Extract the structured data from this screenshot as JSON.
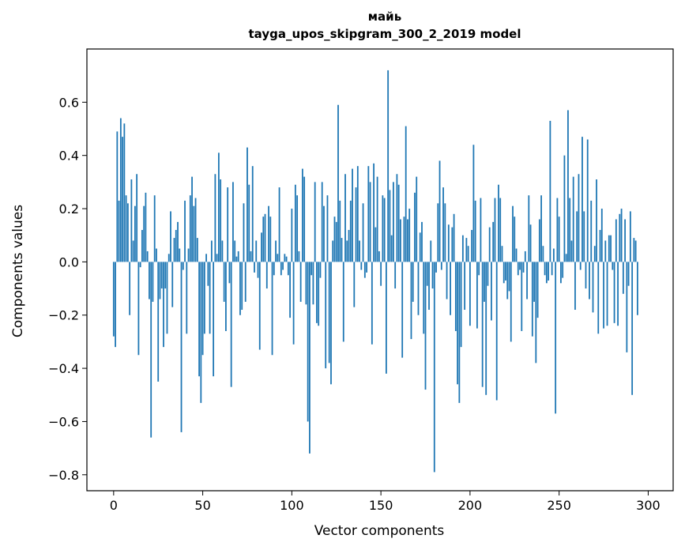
{
  "chart_data": {
    "type": "bar",
    "title": "майь",
    "subtitle": "tayga_upos_skipgram_300_2_2019 model",
    "xlabel": "Vector components",
    "ylabel": "Components values",
    "xlim": [
      -15,
      314
    ],
    "ylim": [
      -0.86,
      0.8
    ],
    "xticks": [
      0,
      50,
      100,
      150,
      200,
      250,
      300
    ],
    "yticks": [
      -0.8,
      -0.6,
      -0.4,
      -0.2,
      0.0,
      0.2,
      0.4,
      0.6
    ],
    "ytick_labels": [
      "−0.8",
      "−0.6",
      "−0.4",
      "−0.2",
      "0.0",
      "0.2",
      "0.4",
      "0.6"
    ],
    "grid": false,
    "bar_color": "#1f77b4",
    "values": [
      -0.28,
      -0.32,
      0.49,
      0.23,
      0.54,
      0.47,
      0.52,
      0.25,
      0.22,
      -0.2,
      0.31,
      0.08,
      0.21,
      0.33,
      -0.35,
      -0.02,
      0.12,
      0.21,
      0.26,
      0.04,
      -0.14,
      -0.66,
      -0.15,
      0.25,
      0.05,
      -0.45,
      -0.14,
      -0.1,
      -0.32,
      -0.1,
      -0.27,
      0.03,
      0.19,
      -0.17,
      0.09,
      0.12,
      0.15,
      0.05,
      -0.64,
      -0.03,
      0.23,
      -0.27,
      0.05,
      0.25,
      0.32,
      0.21,
      0.24,
      0.09,
      -0.43,
      -0.53,
      -0.35,
      -0.27,
      0.03,
      -0.09,
      -0.27,
      0.08,
      -0.43,
      0.33,
      0.03,
      0.41,
      0.31,
      0.08,
      -0.15,
      -0.26,
      0.28,
      -0.08,
      -0.47,
      0.3,
      0.08,
      0.02,
      0.04,
      -0.2,
      -0.18,
      0.22,
      -0.15,
      0.43,
      0.29,
      0.04,
      0.36,
      -0.04,
      0.08,
      -0.06,
      -0.33,
      0.11,
      0.17,
      0.18,
      -0.1,
      0.21,
      0.17,
      -0.35,
      -0.05,
      0.08,
      0.03,
      0.28,
      -0.05,
      -0.03,
      0.03,
      0.02,
      -0.05,
      -0.21,
      0.2,
      -0.31,
      0.29,
      0.25,
      0.04,
      -0.15,
      0.35,
      0.32,
      -0.16,
      -0.6,
      -0.72,
      -0.05,
      -0.16,
      0.3,
      -0.23,
      -0.24,
      -0.06,
      0.3,
      0.21,
      -0.4,
      0.25,
      -0.38,
      -0.46,
      0.08,
      0.17,
      0.15,
      0.59,
      0.23,
      0.09,
      -0.3,
      0.33,
      0.08,
      0.12,
      0.23,
      0.35,
      -0.17,
      0.28,
      0.36,
      0.08,
      -0.03,
      0.22,
      -0.06,
      -0.04,
      0.36,
      0.3,
      -0.31,
      0.37,
      0.13,
      0.32,
      0.04,
      -0.09,
      0.25,
      0.24,
      -0.42,
      0.72,
      0.27,
      0.1,
      0.3,
      -0.1,
      0.33,
      0.29,
      0.16,
      -0.36,
      0.17,
      0.51,
      0.16,
      0.2,
      -0.29,
      -0.15,
      0.26,
      0.32,
      -0.2,
      0.11,
      0.15,
      -0.27,
      -0.48,
      -0.09,
      -0.18,
      0.08,
      -0.1,
      -0.79,
      -0.04,
      0.22,
      0.38,
      -0.03,
      0.28,
      0.22,
      -0.14,
      0.14,
      -0.2,
      0.13,
      0.18,
      -0.26,
      -0.46,
      -0.53,
      -0.32,
      0.1,
      -0.18,
      0.09,
      0.06,
      -0.24,
      0.12,
      0.44,
      0.23,
      -0.25,
      -0.05,
      0.24,
      -0.47,
      -0.15,
      -0.5,
      -0.09,
      0.13,
      -0.22,
      0.15,
      0.24,
      -0.52,
      0.29,
      0.24,
      0.06,
      -0.08,
      -0.07,
      -0.14,
      -0.11,
      -0.3,
      0.21,
      0.17,
      0.05,
      -0.05,
      -0.03,
      -0.26,
      -0.04,
      0.04,
      -0.14,
      0.25,
      0.14,
      -0.28,
      -0.15,
      -0.38,
      -0.21,
      0.16,
      0.25,
      0.06,
      -0.05,
      -0.08,
      -0.07,
      0.53,
      -0.05,
      0.05,
      -0.57,
      0.24,
      0.17,
      -0.08,
      -0.06,
      0.4,
      0.03,
      0.57,
      0.24,
      0.08,
      0.32,
      -0.18,
      0.19,
      0.33,
      -0.03,
      0.47,
      0.19,
      -0.1,
      0.46,
      -0.14,
      0.23,
      -0.19,
      0.06,
      0.31,
      -0.27,
      0.12,
      0.2,
      -0.25,
      0.08,
      -0.24,
      0.1,
      0.1,
      -0.03,
      -0.23,
      0.16,
      -0.24,
      0.18,
      0.2,
      -0.12,
      0.16,
      -0.34,
      -0.09,
      0.19,
      -0.5,
      0.09,
      0.08,
      -0.2
    ]
  }
}
